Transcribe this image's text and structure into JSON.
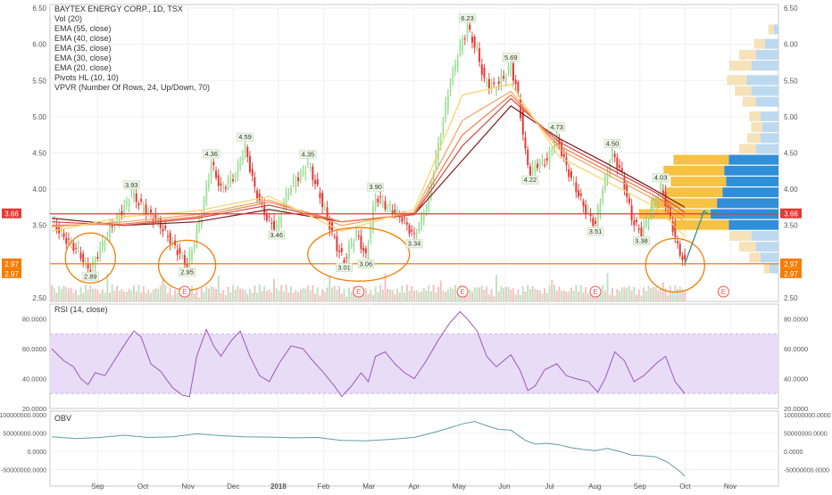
{
  "chart_data": [
    {
      "type": "candlestick",
      "title": "BAYTEX ENERGY CORP., 1D, TSX",
      "indicators": [
        "Vol (20)",
        "EMA (55, close)",
        "EMA (40, close)",
        "EMA (35, close)",
        "EMA (30, close)",
        "EMA (20, close)",
        "Pivots HL (10, 10)",
        "VPVR (Number Of Rows, 24, Up/Down, 70)"
      ],
      "ylim": [
        2.45,
        6.55
      ],
      "yticks": [
        "6.50",
        "6.00",
        "5.50",
        "5.00",
        "4.50",
        "4.00",
        "3.50",
        "2.50"
      ],
      "x_months": [
        "Sep",
        "Oct",
        "Nov",
        "Dec",
        "2018",
        "Feb",
        "Mar",
        "Apr",
        "May",
        "Jun",
        "Jul",
        "Aug",
        "Sep",
        "Oct",
        "Nov"
      ],
      "price_path": [
        [
          0,
          3.55
        ],
        [
          6,
          3.3
        ],
        [
          11,
          3.15
        ],
        [
          14,
          2.95
        ],
        [
          16,
          2.89
        ],
        [
          19,
          3.1
        ],
        [
          24,
          3.45
        ],
        [
          30,
          3.75
        ],
        [
          33,
          3.93
        ],
        [
          39,
          3.7
        ],
        [
          44,
          3.55
        ],
        [
          49,
          3.3
        ],
        [
          53,
          3.1
        ],
        [
          56,
          2.95
        ],
        [
          60,
          3.4
        ],
        [
          64,
          4.0
        ],
        [
          66,
          4.36
        ],
        [
          70,
          4.0
        ],
        [
          76,
          4.2
        ],
        [
          80,
          4.59
        ],
        [
          84,
          4.0
        ],
        [
          89,
          3.6
        ],
        [
          93,
          3.46
        ],
        [
          98,
          4.0
        ],
        [
          103,
          4.2
        ],
        [
          106,
          4.35
        ],
        [
          110,
          4.0
        ],
        [
          114,
          3.6
        ],
        [
          118,
          3.2
        ],
        [
          121,
          3.01
        ],
        [
          126,
          3.4
        ],
        [
          130,
          3.06
        ],
        [
          132,
          3.5
        ],
        [
          134,
          3.9
        ],
        [
          139,
          3.75
        ],
        [
          145,
          3.6
        ],
        [
          150,
          3.34
        ],
        [
          155,
          3.75
        ],
        [
          160,
          4.6
        ],
        [
          165,
          5.5
        ],
        [
          169,
          5.95
        ],
        [
          172,
          6.23
        ],
        [
          176,
          5.9
        ],
        [
          179,
          5.5
        ],
        [
          183,
          5.4
        ],
        [
          187,
          5.55
        ],
        [
          190,
          5.69
        ],
        [
          193,
          5.3
        ],
        [
          196,
          4.5
        ],
        [
          198,
          4.22
        ],
        [
          201,
          4.35
        ],
        [
          205,
          4.4
        ],
        [
          209,
          4.73
        ],
        [
          213,
          4.3
        ],
        [
          217,
          4.0
        ],
        [
          221,
          3.7
        ],
        [
          225,
          3.51
        ],
        [
          228,
          4.0
        ],
        [
          232,
          4.5
        ],
        [
          236,
          4.2
        ],
        [
          240,
          3.6
        ],
        [
          244,
          3.38
        ],
        [
          248,
          3.7
        ],
        [
          252,
          4.03
        ],
        [
          256,
          3.6
        ],
        [
          259,
          3.2
        ],
        [
          262,
          2.97
        ]
      ],
      "ema_paths": [
        {
          "name": "EMA (55, close)",
          "color": "#7b1a1a",
          "points": [
            [
              0,
              3.6
            ],
            [
              30,
              3.5
            ],
            [
              60,
              3.55
            ],
            [
              90,
              3.72
            ],
            [
              120,
              3.55
            ],
            [
              150,
              3.65
            ],
            [
              170,
              4.4
            ],
            [
              190,
              5.15
            ],
            [
              210,
              4.7
            ],
            [
              230,
              4.35
            ],
            [
              250,
              3.98
            ],
            [
              262,
              3.75
            ]
          ]
        },
        {
          "name": "EMA (40, close)",
          "color": "#d64545",
          "points": [
            [
              0,
              3.55
            ],
            [
              30,
              3.5
            ],
            [
              60,
              3.6
            ],
            [
              90,
              3.78
            ],
            [
              120,
              3.55
            ],
            [
              150,
              3.65
            ],
            [
              170,
              4.6
            ],
            [
              190,
              5.25
            ],
            [
              210,
              4.65
            ],
            [
              230,
              4.3
            ],
            [
              250,
              3.95
            ],
            [
              262,
              3.68
            ]
          ]
        },
        {
          "name": "EMA (35, close)",
          "color": "#f07d4a",
          "points": [
            [
              0,
              3.5
            ],
            [
              30,
              3.52
            ],
            [
              60,
              3.62
            ],
            [
              90,
              3.82
            ],
            [
              120,
              3.55
            ],
            [
              150,
              3.66
            ],
            [
              170,
              4.75
            ],
            [
              190,
              5.3
            ],
            [
              210,
              4.6
            ],
            [
              230,
              4.25
            ],
            [
              250,
              3.9
            ],
            [
              262,
              3.62
            ]
          ]
        },
        {
          "name": "EMA (30, close)",
          "color": "#f4a261",
          "points": [
            [
              0,
              3.48
            ],
            [
              30,
              3.55
            ],
            [
              60,
              3.65
            ],
            [
              90,
              3.85
            ],
            [
              120,
              3.5
            ],
            [
              150,
              3.68
            ],
            [
              170,
              4.95
            ],
            [
              190,
              5.35
            ],
            [
              210,
              4.55
            ],
            [
              230,
              4.2
            ],
            [
              250,
              3.85
            ],
            [
              262,
              3.55
            ]
          ]
        },
        {
          "name": "EMA (20, close)",
          "color": "#f6d365",
          "points": [
            [
              0,
              3.42
            ],
            [
              30,
              3.62
            ],
            [
              60,
              3.7
            ],
            [
              90,
              3.9
            ],
            [
              120,
              3.42
            ],
            [
              150,
              3.72
            ],
            [
              170,
              5.3
            ],
            [
              190,
              5.45
            ],
            [
              210,
              4.45
            ],
            [
              230,
              4.1
            ],
            [
              250,
              3.75
            ],
            [
              262,
              3.35
            ]
          ]
        }
      ],
      "pivot_labels": [
        {
          "text": "2.89",
          "t": 16,
          "y": 2.89,
          "pos": "below"
        },
        {
          "text": "3.93",
          "t": 33,
          "y": 3.93,
          "pos": "above"
        },
        {
          "text": "2.95",
          "t": 56,
          "y": 2.95,
          "pos": "below"
        },
        {
          "text": "4.36",
          "t": 66,
          "y": 4.36,
          "pos": "above"
        },
        {
          "text": "4.59",
          "t": 80,
          "y": 4.59,
          "pos": "above"
        },
        {
          "text": "3.46",
          "t": 93,
          "y": 3.46,
          "pos": "below"
        },
        {
          "text": "4.35",
          "t": 106,
          "y": 4.35,
          "pos": "above"
        },
        {
          "text": "3.01",
          "t": 121,
          "y": 3.01,
          "pos": "below"
        },
        {
          "text": "3.06",
          "t": 130,
          "y": 3.06,
          "pos": "below"
        },
        {
          "text": "3.90",
          "t": 134,
          "y": 3.9,
          "pos": "above"
        },
        {
          "text": "3.34",
          "t": 150,
          "y": 3.34,
          "pos": "below"
        },
        {
          "text": "6.23",
          "t": 172,
          "y": 6.23,
          "pos": "above"
        },
        {
          "text": "5.69",
          "t": 190,
          "y": 5.69,
          "pos": "above"
        },
        {
          "text": "4.22",
          "t": 198,
          "y": 4.22,
          "pos": "below"
        },
        {
          "text": "4.73",
          "t": 209,
          "y": 4.73,
          "pos": "above"
        },
        {
          "text": "4.50",
          "t": 232,
          "y": 4.5,
          "pos": "above"
        },
        {
          "text": "3.51",
          "t": 225,
          "y": 3.51,
          "pos": "below"
        },
        {
          "text": "3.38",
          "t": 244,
          "y": 3.38,
          "pos": "below"
        },
        {
          "text": "4.03",
          "t": 252,
          "y": 4.03,
          "pos": "above"
        }
      ],
      "earnings_markers": {
        "label": "E",
        "t": [
          55,
          127,
          170,
          225,
          278
        ]
      },
      "horizontal_lines": [
        {
          "price": 3.66,
          "color": "#e53935",
          "label": "3.66"
        },
        {
          "price": 2.97,
          "color": "#f57c00",
          "label": "2.97"
        }
      ],
      "last_price_label": "2.97",
      "vpvr_rows": [
        {
          "price": 6.2,
          "up": 0.05,
          "down": 0.05
        },
        {
          "price": 6.0,
          "up": 0.1,
          "down": 0.15
        },
        {
          "price": 5.85,
          "up": 0.15,
          "down": 0.25
        },
        {
          "price": 5.7,
          "up": 0.2,
          "down": 0.3
        },
        {
          "price": 5.5,
          "up": 0.18,
          "down": 0.35
        },
        {
          "price": 5.35,
          "up": 0.15,
          "down": 0.3
        },
        {
          "price": 5.2,
          "up": 0.12,
          "down": 0.25
        },
        {
          "price": 5.0,
          "up": 0.1,
          "down": 0.2
        },
        {
          "price": 4.85,
          "up": 0.1,
          "down": 0.18
        },
        {
          "price": 4.7,
          "up": 0.12,
          "down": 0.2
        },
        {
          "price": 4.55,
          "up": 0.15,
          "down": 0.25
        },
        {
          "price": 4.4,
          "up": 0.5,
          "down": 0.55
        },
        {
          "price": 4.25,
          "up": 0.55,
          "down": 0.6
        },
        {
          "price": 4.1,
          "up": 0.5,
          "down": 0.58
        },
        {
          "price": 3.95,
          "up": 0.52,
          "down": 0.62
        },
        {
          "price": 3.8,
          "up": 0.6,
          "down": 0.68
        },
        {
          "price": 3.65,
          "up": 0.65,
          "down": 0.75
        },
        {
          "price": 3.5,
          "up": 0.5,
          "down": 0.55
        },
        {
          "price": 3.35,
          "up": 0.2,
          "down": 0.3
        },
        {
          "price": 3.2,
          "up": 0.15,
          "down": 0.25
        },
        {
          "price": 3.05,
          "up": 0.1,
          "down": 0.2
        },
        {
          "price": 2.9,
          "up": 0.05,
          "down": 0.1
        }
      ],
      "ellipses": [
        {
          "t": 16,
          "price": 3.05
        },
        {
          "t": 56,
          "price": 2.95
        },
        {
          "t": 127,
          "price": 3.1
        },
        {
          "t": 258,
          "price": 2.95
        }
      ]
    },
    {
      "type": "line",
      "title": "RSI (14, close)",
      "ylim": [
        20,
        90
      ],
      "yticks": [
        "80.0000",
        "60.0000",
        "40.0000",
        "20.0000"
      ],
      "band": [
        30,
        70
      ],
      "path": [
        [
          0,
          60
        ],
        [
          5,
          52
        ],
        [
          9,
          48
        ],
        [
          12,
          40
        ],
        [
          15,
          36
        ],
        [
          18,
          44
        ],
        [
          22,
          42
        ],
        [
          27,
          55
        ],
        [
          31,
          65
        ],
        [
          34,
          72
        ],
        [
          37,
          68
        ],
        [
          41,
          50
        ],
        [
          45,
          45
        ],
        [
          50,
          34
        ],
        [
          54,
          29
        ],
        [
          57,
          28
        ],
        [
          60,
          55
        ],
        [
          64,
          73
        ],
        [
          67,
          62
        ],
        [
          70,
          55
        ],
        [
          74,
          65
        ],
        [
          78,
          72
        ],
        [
          82,
          55
        ],
        [
          86,
          42
        ],
        [
          90,
          38
        ],
        [
          94,
          50
        ],
        [
          99,
          62
        ],
        [
          104,
          60
        ],
        [
          108,
          52
        ],
        [
          112,
          45
        ],
        [
          117,
          35
        ],
        [
          120,
          28
        ],
        [
          124,
          35
        ],
        [
          128,
          44
        ],
        [
          131,
          38
        ],
        [
          134,
          55
        ],
        [
          138,
          58
        ],
        [
          142,
          50
        ],
        [
          146,
          44
        ],
        [
          150,
          40
        ],
        [
          155,
          52
        ],
        [
          160,
          66
        ],
        [
          165,
          78
        ],
        [
          169,
          85
        ],
        [
          172,
          80
        ],
        [
          176,
          72
        ],
        [
          180,
          55
        ],
        [
          184,
          48
        ],
        [
          187,
          52
        ],
        [
          190,
          56
        ],
        [
          194,
          45
        ],
        [
          197,
          32
        ],
        [
          200,
          35
        ],
        [
          204,
          46
        ],
        [
          209,
          50
        ],
        [
          213,
          42
        ],
        [
          217,
          40
        ],
        [
          222,
          38
        ],
        [
          226,
          31
        ],
        [
          229,
          40
        ],
        [
          233,
          58
        ],
        [
          237,
          52
        ],
        [
          241,
          38
        ],
        [
          245,
          42
        ],
        [
          250,
          50
        ],
        [
          254,
          55
        ],
        [
          258,
          38
        ],
        [
          262,
          30
        ]
      ]
    },
    {
      "type": "line",
      "title": "OBV",
      "ylim": [
        -95000000,
        110000000
      ],
      "yticks": [
        "100000000.0000",
        "50000000.0000",
        "0.0000",
        "-50000000.0000"
      ],
      "path": [
        [
          0,
          40000000
        ],
        [
          10,
          35000000
        ],
        [
          20,
          38000000
        ],
        [
          30,
          44000000
        ],
        [
          40,
          38000000
        ],
        [
          50,
          40000000
        ],
        [
          60,
          48000000
        ],
        [
          70,
          43000000
        ],
        [
          80,
          40000000
        ],
        [
          90,
          39000000
        ],
        [
          100,
          37000000
        ],
        [
          110,
          38000000
        ],
        [
          120,
          30000000
        ],
        [
          130,
          29000000
        ],
        [
          140,
          33000000
        ],
        [
          150,
          38000000
        ],
        [
          160,
          55000000
        ],
        [
          170,
          75000000
        ],
        [
          175,
          82000000
        ],
        [
          180,
          70000000
        ],
        [
          185,
          60000000
        ],
        [
          190,
          58000000
        ],
        [
          196,
          30000000
        ],
        [
          200,
          20000000
        ],
        [
          205,
          22000000
        ],
        [
          210,
          18000000
        ],
        [
          215,
          10000000
        ],
        [
          220,
          5000000
        ],
        [
          225,
          2000000
        ],
        [
          230,
          8000000
        ],
        [
          235,
          0
        ],
        [
          240,
          -10000000
        ],
        [
          245,
          -12000000
        ],
        [
          250,
          -15000000
        ],
        [
          255,
          -30000000
        ],
        [
          260,
          -55000000
        ],
        [
          262,
          -68000000
        ]
      ]
    }
  ]
}
